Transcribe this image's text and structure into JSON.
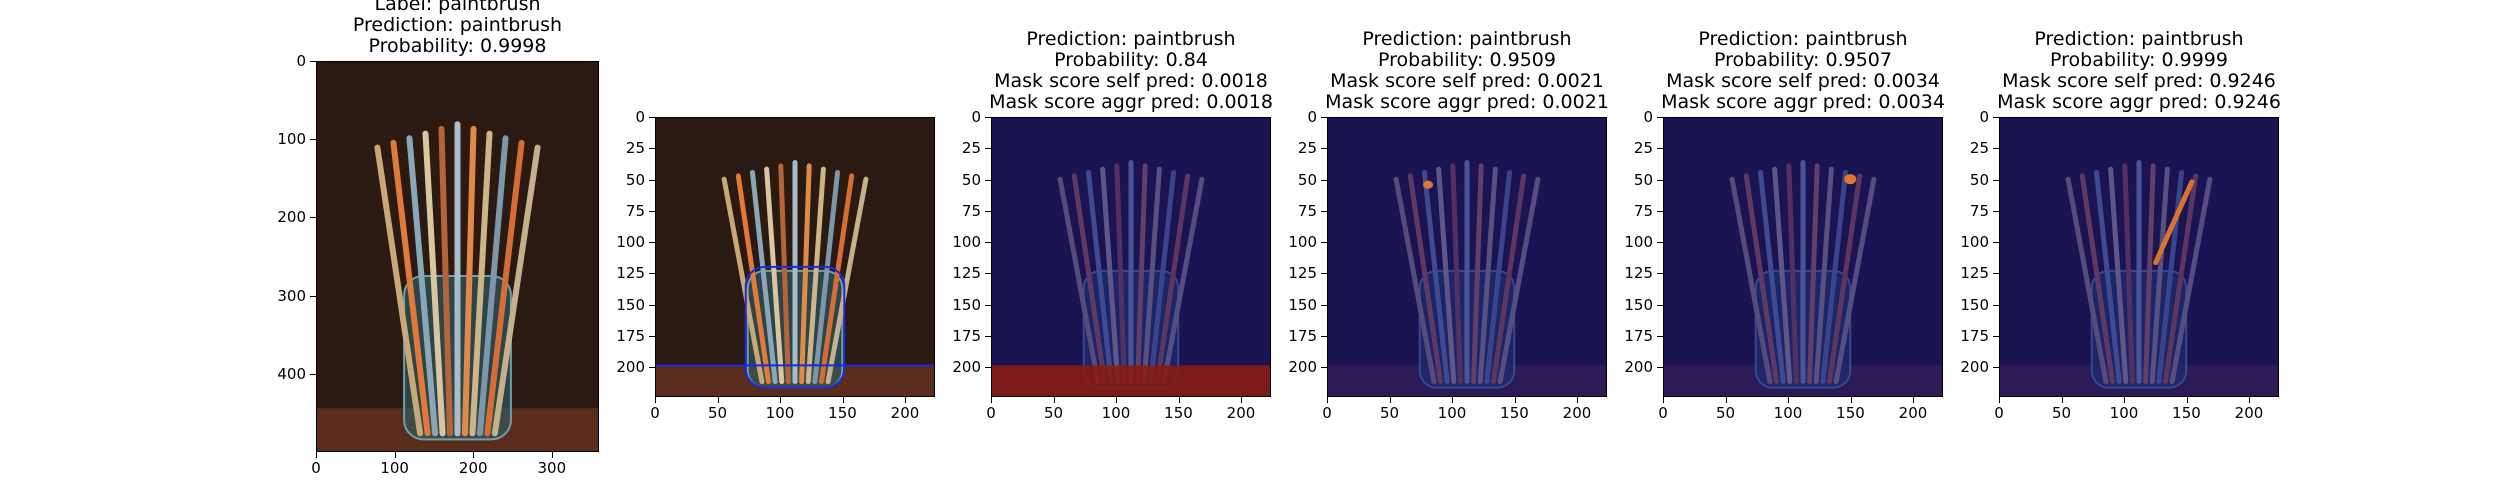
{
  "colors": {
    "background": "#2a1a12",
    "table": "#5a2c1c",
    "overlay_blue": "#12127a",
    "overlay_red": "#8a1a0a",
    "outline": "#1a2adf"
  },
  "panels": [
    {
      "id": "original",
      "title_lines": [
        "Label: paintbrush",
        "Prediction: paintbrush",
        "Probability: 0.9998"
      ],
      "x_ticks": [
        "0",
        "100",
        "200",
        "300"
      ],
      "y_ticks": [
        "0",
        "100",
        "200",
        "300",
        "400"
      ],
      "x_range": [
        0,
        360
      ],
      "y_range": [
        0,
        500
      ],
      "overlay": "none"
    },
    {
      "id": "outline",
      "title_lines": [],
      "x_ticks": [
        "0",
        "50",
        "100",
        "150",
        "200"
      ],
      "y_ticks": [
        "0",
        "25",
        "50",
        "75",
        "100",
        "125",
        "150",
        "175",
        "200"
      ],
      "x_range": [
        0,
        224
      ],
      "y_range": [
        0,
        224
      ],
      "overlay": "outline"
    },
    {
      "id": "mask-1",
      "title_lines": [
        "Prediction: paintbrush",
        "Probability: 0.84",
        "Mask score self pred: 0.0018",
        "Mask score aggr pred: 0.0018"
      ],
      "x_ticks": [
        "0",
        "50",
        "100",
        "150",
        "200"
      ],
      "y_ticks": [
        "0",
        "25",
        "50",
        "75",
        "100",
        "125",
        "150",
        "175",
        "200"
      ],
      "x_range": [
        0,
        224
      ],
      "y_range": [
        0,
        224
      ],
      "overlay": "table-red"
    },
    {
      "id": "mask-2",
      "title_lines": [
        "Prediction: paintbrush",
        "Probability: 0.9509",
        "Mask score self pred: 0.0021",
        "Mask score aggr pred: 0.0021"
      ],
      "x_ticks": [
        "0",
        "50",
        "100",
        "150",
        "200"
      ],
      "y_ticks": [
        "0",
        "25",
        "50",
        "75",
        "100",
        "125",
        "150",
        "175",
        "200"
      ],
      "x_range": [
        0,
        224
      ],
      "y_range": [
        0,
        224
      ],
      "overlay": "spot-left"
    },
    {
      "id": "mask-3",
      "title_lines": [
        "Prediction: paintbrush",
        "Probability: 0.9507",
        "Mask score self pred: 0.0034",
        "Mask score aggr pred: 0.0034"
      ],
      "x_ticks": [
        "0",
        "50",
        "100",
        "150",
        "200"
      ],
      "y_ticks": [
        "0",
        "25",
        "50",
        "75",
        "100",
        "125",
        "150",
        "175",
        "200"
      ],
      "x_range": [
        0,
        224
      ],
      "y_range": [
        0,
        224
      ],
      "overlay": "spot-right"
    },
    {
      "id": "mask-4",
      "title_lines": [
        "Prediction: paintbrush",
        "Probability: 0.9999",
        "Mask score self pred: 0.9246",
        "Mask score aggr pred: 0.9246"
      ],
      "x_ticks": [
        "0",
        "50",
        "100",
        "150",
        "200"
      ],
      "y_ticks": [
        "0",
        "25",
        "50",
        "75",
        "100",
        "125",
        "150",
        "175",
        "200"
      ],
      "x_range": [
        0,
        224
      ],
      "y_range": [
        0,
        224
      ],
      "overlay": "brush-right"
    }
  ]
}
